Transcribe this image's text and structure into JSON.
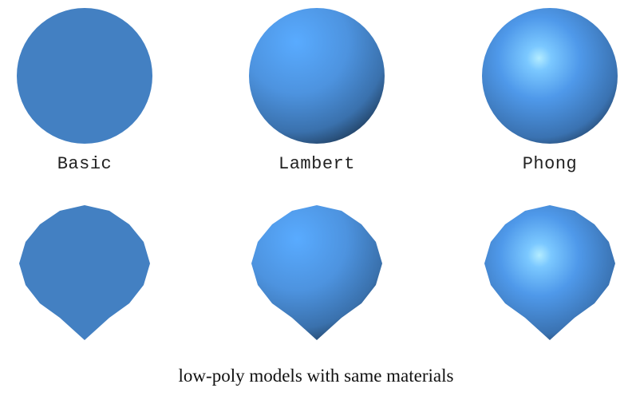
{
  "materials": {
    "basic": {
      "label": "Basic"
    },
    "lambert": {
      "label": "Lambert"
    },
    "phong": {
      "label": "Phong"
    }
  },
  "caption": "low-poly models with same materials",
  "colors": {
    "base": "#4380c2",
    "highlight_lambert": "#58aaff",
    "highlight_phong": "#a9e6ff",
    "shadow": "#1b3350"
  }
}
